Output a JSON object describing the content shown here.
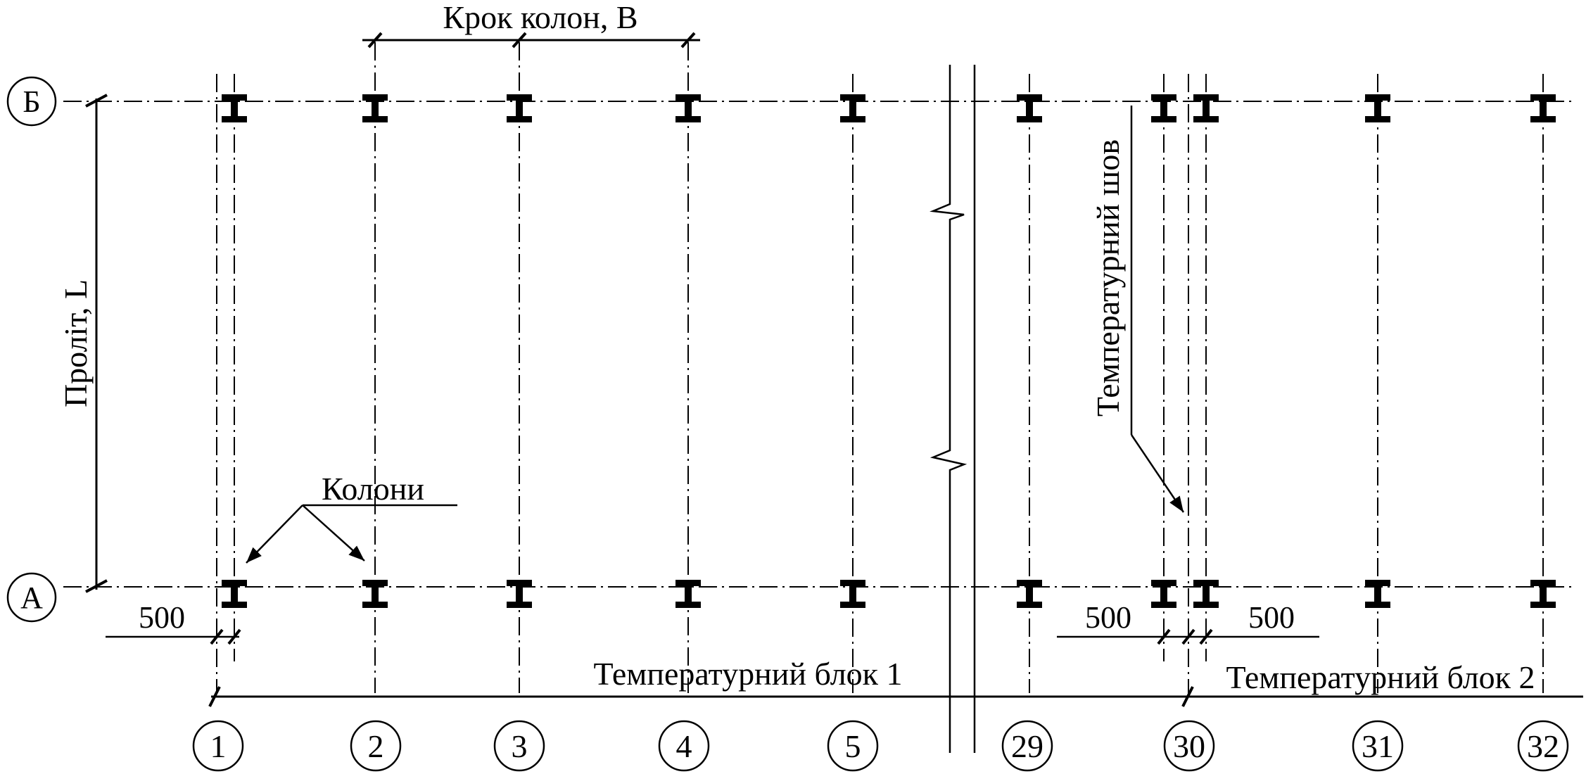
{
  "dimensions": {
    "column_step": "Крок колон, В",
    "span": "Проліт, L",
    "offset": "500"
  },
  "labels": {
    "columns": "Колони",
    "expansion_joint": "Температурний шов",
    "block_1": "Температурний блок 1",
    "block_2": "Температурний блок 2"
  },
  "row_axes": [
    "Б",
    "А"
  ],
  "column_axes": [
    "1",
    "2",
    "3",
    "4",
    "5",
    "29",
    "30",
    "31",
    "32"
  ]
}
